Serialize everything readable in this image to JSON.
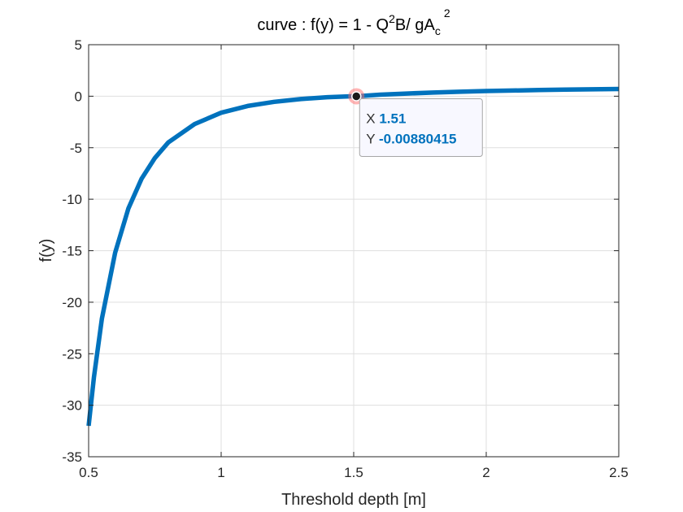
{
  "chart_data": {
    "type": "line",
    "title": {
      "main": "curve : f(y) = 1 - Q",
      "sup1": "2",
      "mid": "B/ gA",
      "sub": "c",
      "sup2": "2"
    },
    "xlabel": "Threshold depth [m]",
    "ylabel": "f(y)",
    "xlim": [
      0.5,
      2.5
    ],
    "ylim": [
      -35,
      5
    ],
    "xticks": [
      0.5,
      1,
      1.5,
      2,
      2.5
    ],
    "xtick_labels": [
      "0.5",
      "1",
      "1.5",
      "2",
      "2.5"
    ],
    "yticks": [
      5,
      0,
      -5,
      -10,
      -15,
      -20,
      -25,
      -30,
      -35
    ],
    "ytick_labels": [
      "5",
      "0",
      "-5",
      "-10",
      "-15",
      "-20",
      "-25",
      "-30",
      "-35"
    ],
    "grid": true,
    "series": [
      {
        "color": "#0072BD",
        "x": [
          0.5,
          0.52,
          0.55,
          0.6,
          0.65,
          0.7,
          0.75,
          0.8,
          0.9,
          1.0,
          1.1,
          1.2,
          1.3,
          1.4,
          1.5,
          1.51,
          1.6,
          1.7,
          1.8,
          1.9,
          2.0,
          2.1,
          2.2,
          2.3,
          2.4,
          2.5
        ],
        "y": [
          -32.0,
          -27.3,
          -21.6,
          -15.2,
          -10.9,
          -8.0,
          -6.0,
          -4.5,
          -2.7,
          -1.6,
          -0.95,
          -0.55,
          -0.28,
          -0.1,
          0.0,
          -0.0088,
          0.15,
          0.26,
          0.35,
          0.43,
          0.5,
          0.55,
          0.6,
          0.64,
          0.67,
          0.7
        ]
      }
    ],
    "datatip": {
      "x_label": "X",
      "x_value": "1.51",
      "y_label": "Y",
      "y_value": "-0.00880415",
      "x": 1.51,
      "y": -0.0088
    }
  },
  "colors": {
    "line": "#0072BD",
    "grid": "#DFDFDF",
    "axes": "#262626",
    "datatip_value": "#0072BD",
    "marker_halo": "#FF6B6B"
  }
}
